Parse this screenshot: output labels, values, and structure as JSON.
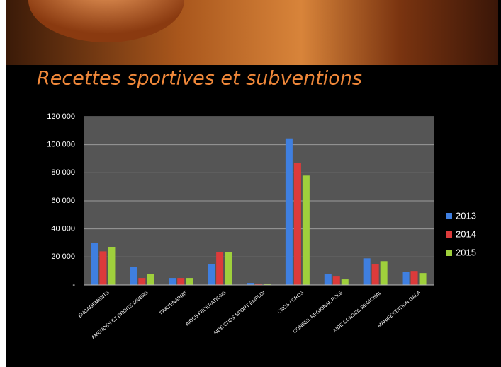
{
  "chart_data": {
    "type": "bar",
    "title": "Recettes sportives et subventions",
    "categories": [
      "ENGAGEMENTS",
      "AMENDES ET DROITS DIVERS",
      "PARTENARIAT",
      "AIDES FEDERATIONS",
      "AIDE CNDS SPORT EMPLOI",
      "CNDS / CROS",
      "CONSEIL REGIONAL POLE",
      "AIDE CONSEIL REGIONAL",
      "MANIFESTATION GALA"
    ],
    "series": [
      {
        "name": "2013",
        "color": "#3f7fe0",
        "values": [
          30000,
          13000,
          5000,
          15000,
          1500,
          104500,
          8000,
          19000,
          9500
        ]
      },
      {
        "name": "2014",
        "color": "#dc3b3b",
        "values": [
          24000,
          5000,
          5000,
          23500,
          1000,
          87000,
          6000,
          15000,
          10000
        ]
      },
      {
        "name": "2015",
        "color": "#9fd03c",
        "values": [
          27000,
          8000,
          5000,
          23500,
          1000,
          78000,
          4000,
          17000,
          8500
        ]
      }
    ],
    "ylim": [
      0,
      120000
    ],
    "yticks": [
      {
        "value": 0,
        "label": "-"
      },
      {
        "value": 20000,
        "label": "20 000"
      },
      {
        "value": 40000,
        "label": "40 000"
      },
      {
        "value": 60000,
        "label": "60 000"
      },
      {
        "value": 80000,
        "label": "80 000"
      },
      {
        "value": 100000,
        "label": "100 000"
      },
      {
        "value": 120000,
        "label": "120 000"
      }
    ],
    "grid": true,
    "legend": "right"
  }
}
